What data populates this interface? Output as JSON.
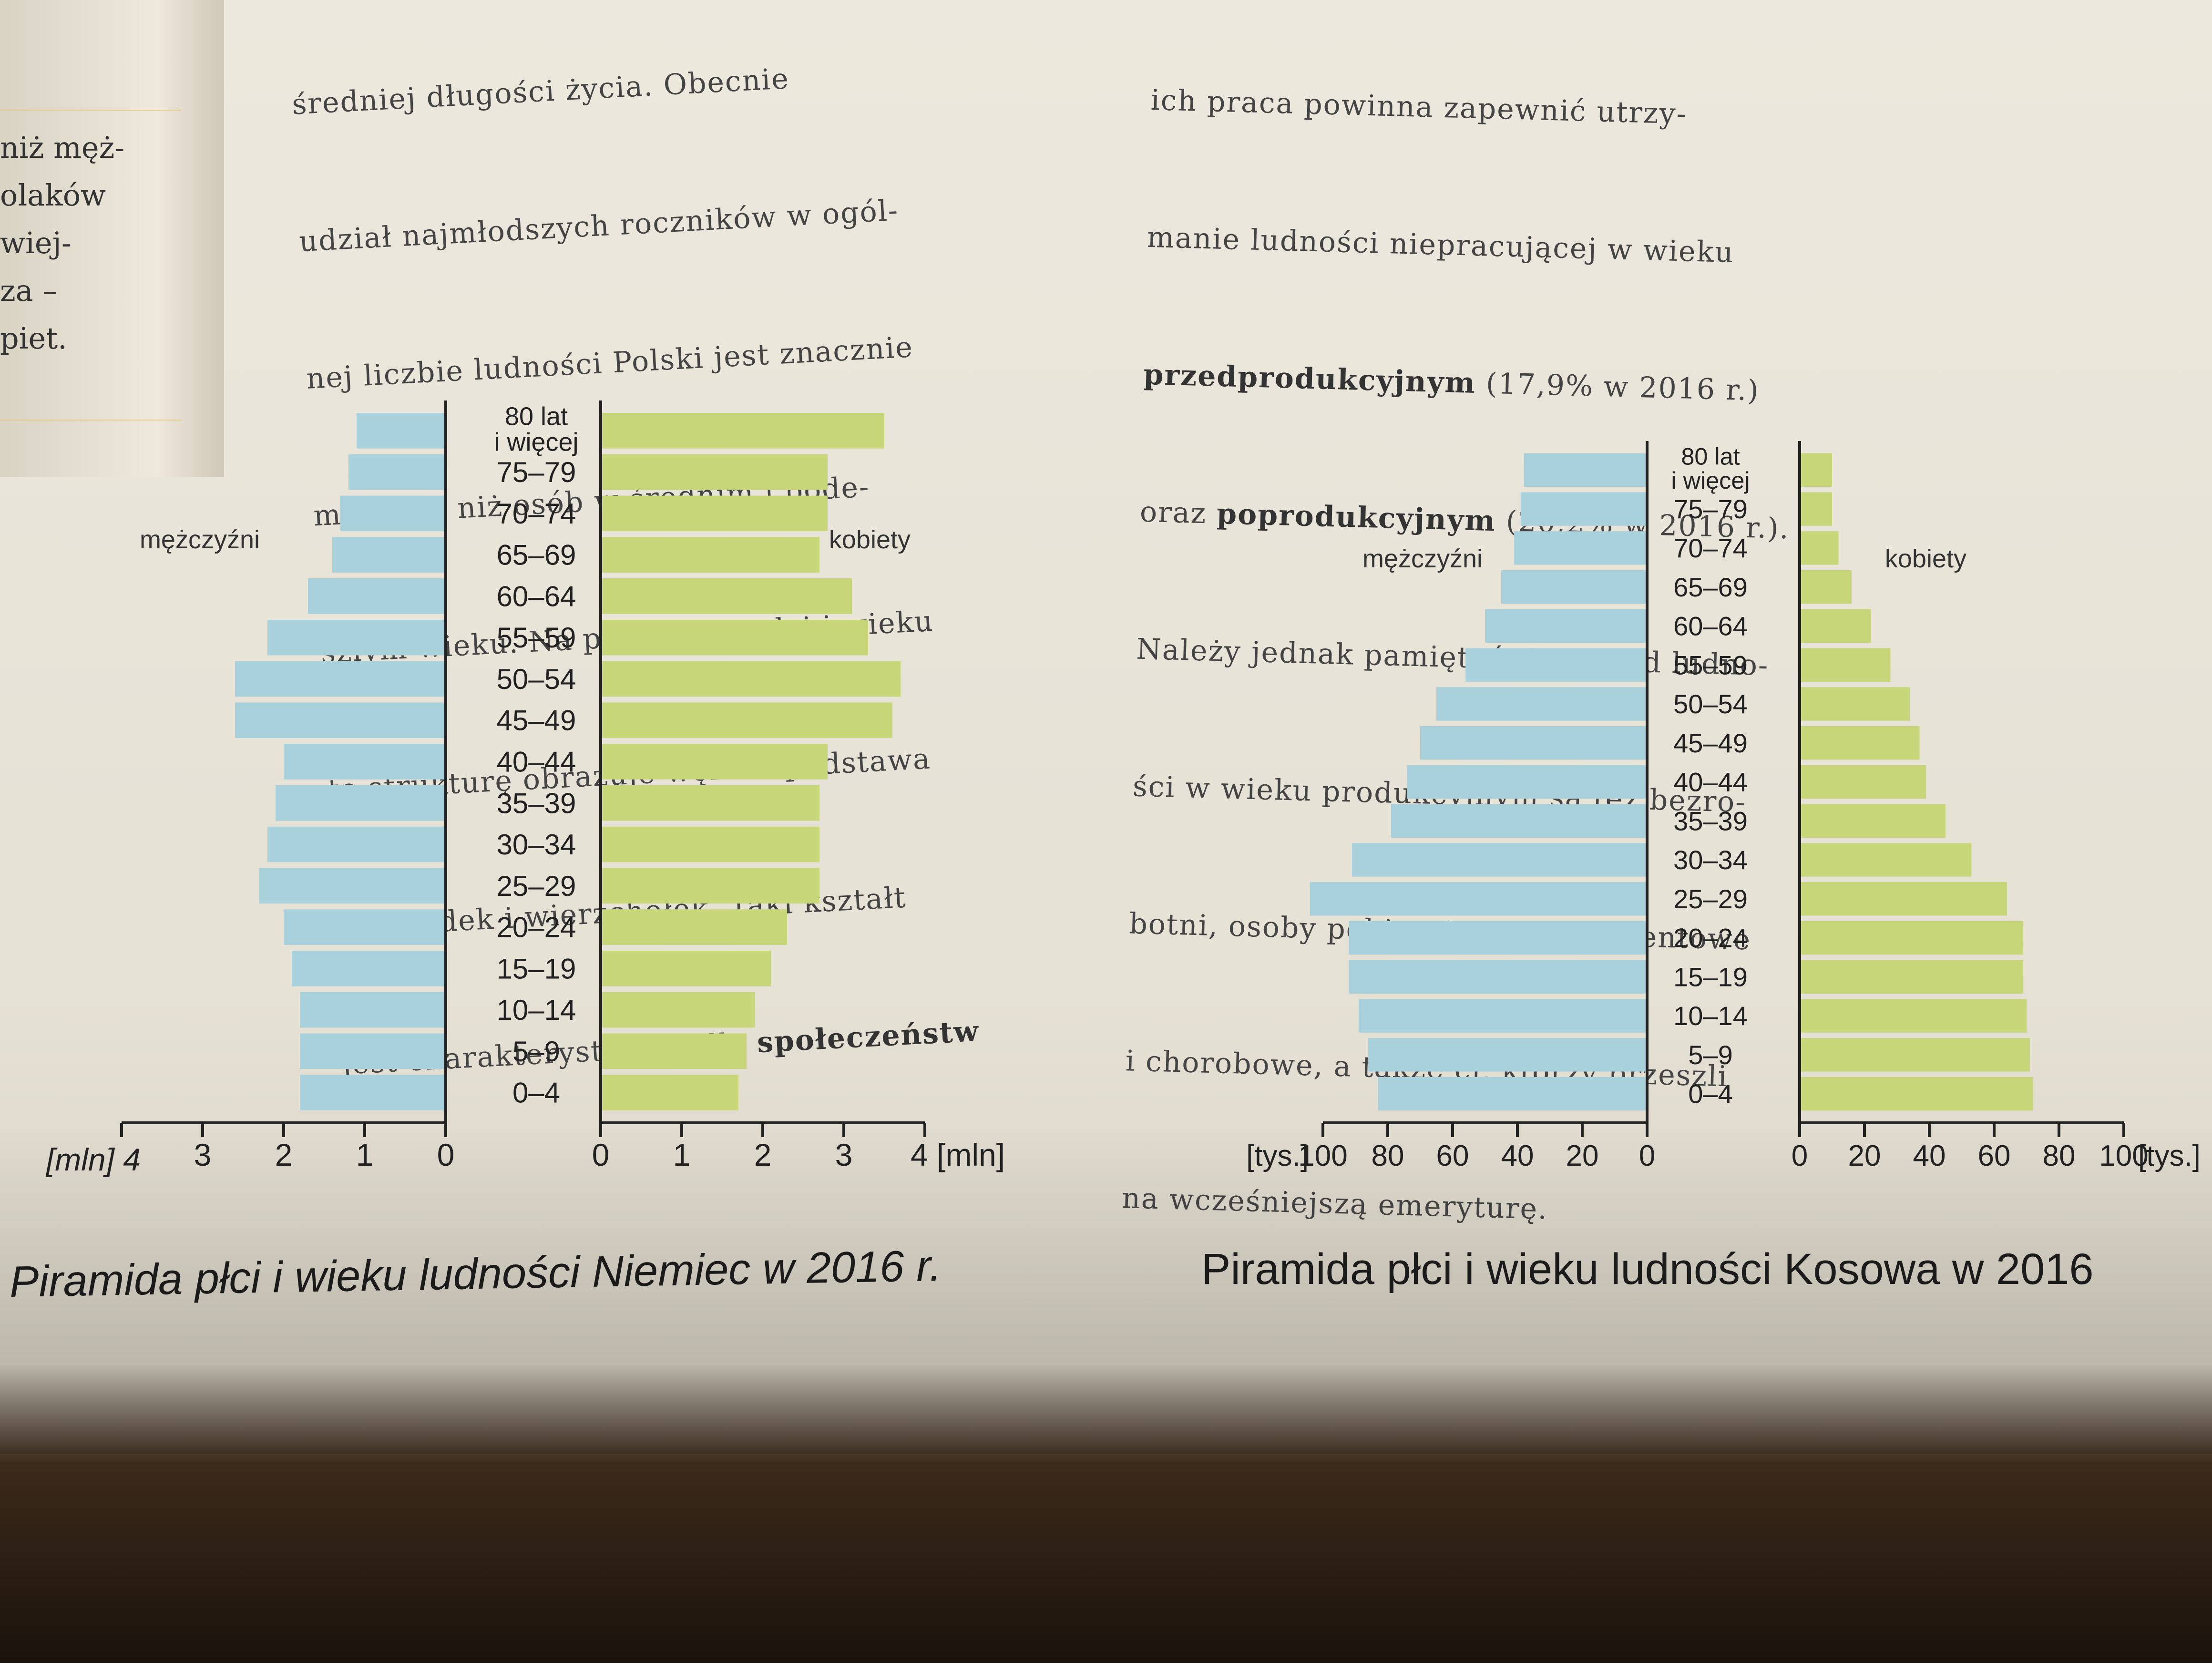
{
  "left_margin_text": [
    "niż męż-",
    "olaków",
    "wiej-",
    "za –",
    "piet."
  ],
  "text_left": {
    "lines": [
      "średniej długości życia. Obecnie",
      "udział najmłodszych roczników w ogól-",
      "nej liczbie ludności Polski jest znacznie",
      "mniejszy niż osób w średnim i pode-",
      "szłym wieku. Na piramidzie płci i wieku",
      "tę strukturę obrazuje węższa podstawa",
      "niż środek i wierzchołek. Taki kształt",
      "jest charakterystyczny dla"
    ],
    "bold_tail": "społeczeństw"
  },
  "text_right": {
    "line0": "ich praca powinna zapewnić utrzy-",
    "line1": "manie ludności niepracującej w wieku",
    "line2_bold": "przedprodukcyjnym",
    "line2_rest": " (17,9% w 2016 r.)",
    "line3_pre": "oraz ",
    "line3_bold": "poprodukcyjnym",
    "line3_rest": " (20,2% w 2016 r.).",
    "line4": "Należy jednak pamiętać, że wśród ludno-",
    "line5": "ści w wieku produkcyjnym są też bezro-",
    "line6": "botni, osoby pobierające zasiłki rentowe",
    "line7": "i chorobowe, a także ci, którzy przeszli",
    "line8": "na wcześniejszą emeryturę."
  },
  "colors": {
    "male": "#a9d1dc",
    "female": "#c8d67a",
    "axis": "#222222"
  },
  "chart_data": [
    {
      "type": "bar",
      "orientation": "horizontal-pyramid",
      "title": "Piramida płci i wieku ludności Niemiec w 2016 r.",
      "unit": "[mln]",
      "categories": [
        "0–4",
        "5–9",
        "10–14",
        "15–19",
        "20–24",
        "25–29",
        "30–34",
        "35–39",
        "40–44",
        "45–49",
        "50–54",
        "55–59",
        "60–64",
        "65–69",
        "70–74",
        "75–79",
        "80 lat i więcej"
      ],
      "top_label_lines": [
        "80 lat",
        "i więcej"
      ],
      "series": [
        {
          "name": "mężczyźni",
          "side": "left",
          "values": [
            1.8,
            1.8,
            1.8,
            1.9,
            2.0,
            2.3,
            2.2,
            2.1,
            2.0,
            2.6,
            2.6,
            2.2,
            1.7,
            1.4,
            1.3,
            1.2,
            1.1
          ]
        },
        {
          "name": "kobiety",
          "side": "right",
          "values": [
            1.7,
            1.8,
            1.9,
            2.1,
            2.3,
            2.7,
            2.7,
            2.7,
            2.8,
            3.6,
            3.7,
            3.3,
            3.1,
            2.7,
            2.8,
            2.8,
            3.5
          ]
        }
      ],
      "xlim": [
        0,
        4
      ],
      "ticks": [
        "0",
        "1",
        "2",
        "3",
        "4"
      ],
      "left_unit_label": "[mln] 4",
      "right_unit_label": "4 [mln]"
    },
    {
      "type": "bar",
      "orientation": "horizontal-pyramid",
      "title": "Piramida płci i wieku ludności Kosowa w 2016",
      "unit": "[tys.]",
      "categories": [
        "0–4",
        "5–9",
        "10–14",
        "15–19",
        "20–24",
        "25–29",
        "30–34",
        "35–39",
        "40–44",
        "45–49",
        "50–54",
        "55–59",
        "60–64",
        "65–69",
        "70–74",
        "75–79",
        "80 lat i więcej"
      ],
      "top_label_lines": [
        "80 lat",
        "i więcej"
      ],
      "series": [
        {
          "name": "mężczyźni",
          "side": "left",
          "values": [
            83,
            86,
            89,
            92,
            92,
            104,
            91,
            79,
            74,
            70,
            65,
            56,
            50,
            45,
            41,
            39,
            38
          ]
        },
        {
          "name": "kobiety",
          "side": "right",
          "values": [
            72,
            71,
            70,
            69,
            69,
            64,
            53,
            45,
            39,
            37,
            34,
            28,
            22,
            16,
            12,
            10,
            10
          ]
        }
      ],
      "xlim": [
        0,
        100
      ],
      "ticks_left": [
        "100",
        "80",
        "60",
        "40",
        "20",
        "0"
      ],
      "ticks_right": [
        "0",
        "20",
        "40",
        "60",
        "80",
        "100"
      ],
      "left_unit_label": "[tys.]",
      "right_unit_label": "[tys.]"
    }
  ]
}
